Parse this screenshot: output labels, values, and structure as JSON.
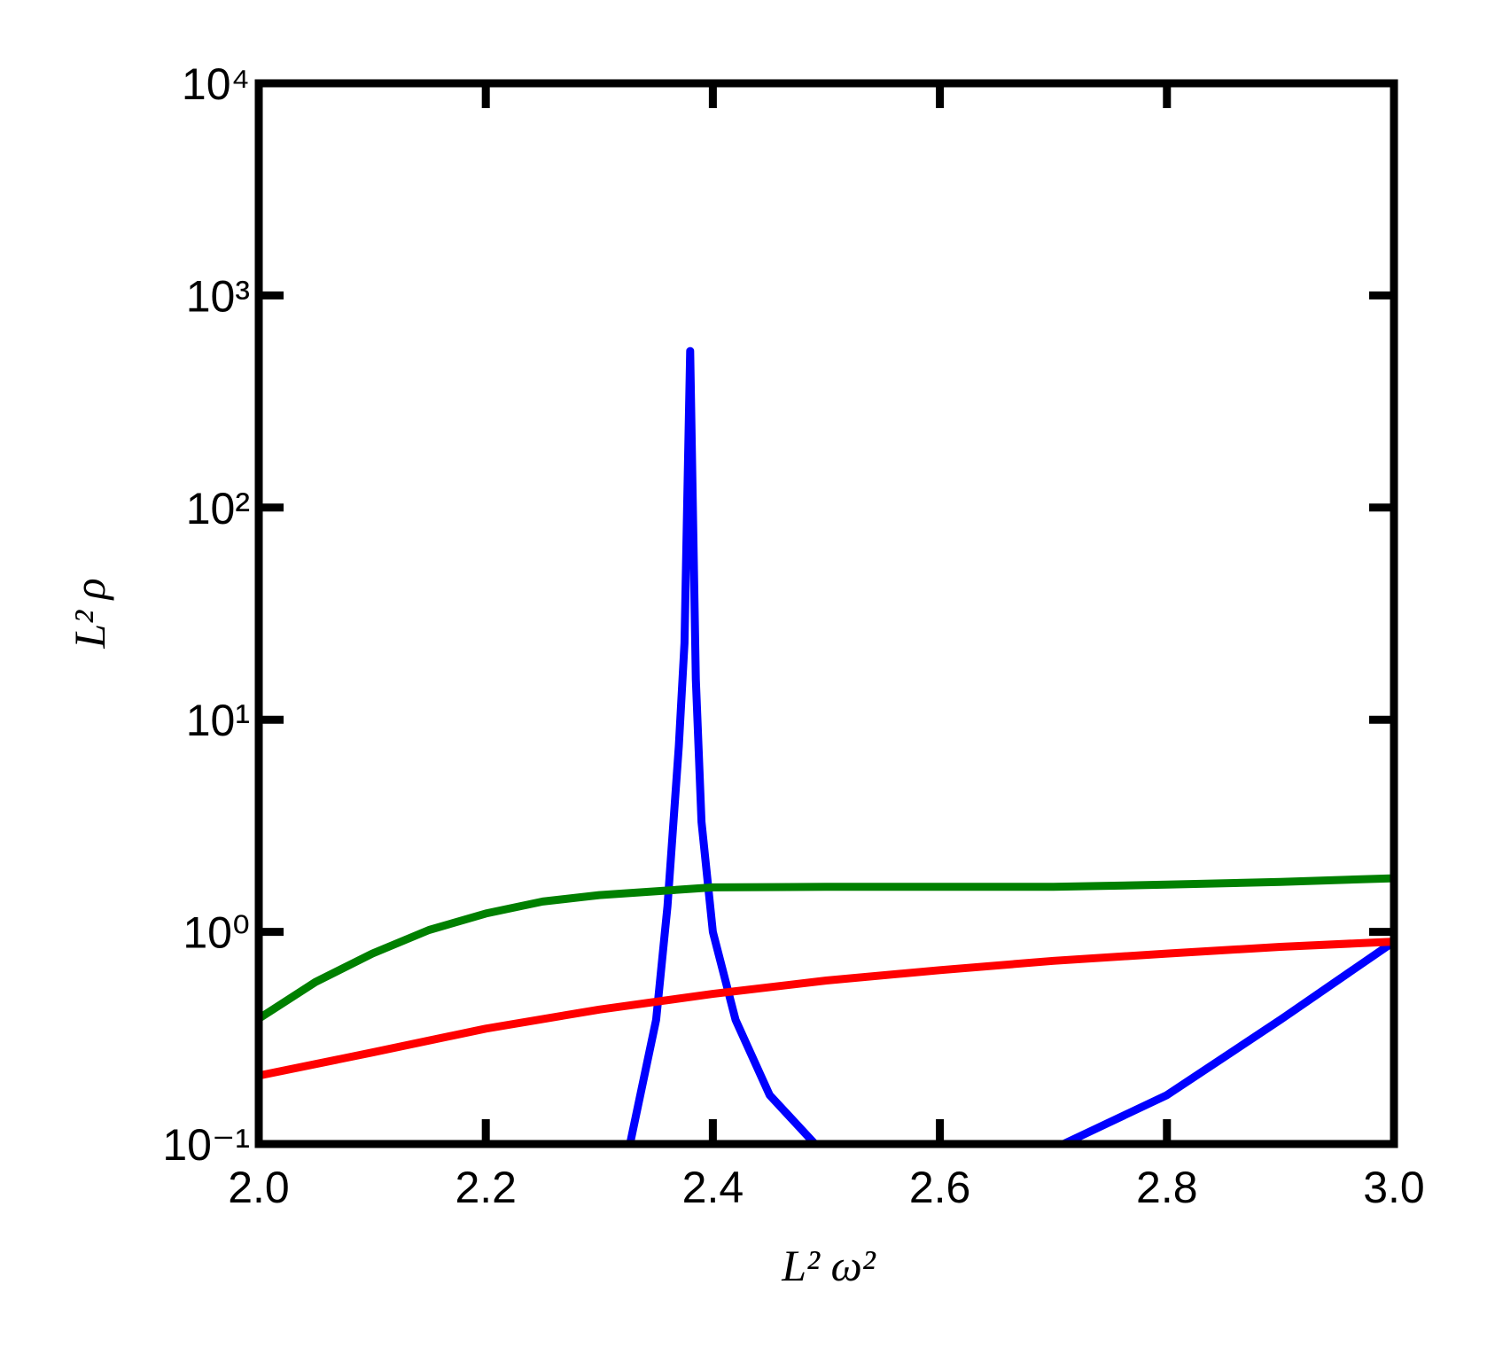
{
  "chart_data": {
    "type": "line",
    "xlabel": "L² ω²",
    "ylabel": "L² ρ",
    "xlim": [
      2.0,
      3.0
    ],
    "xticks": [
      {
        "value": 2.0,
        "label": "2.0"
      },
      2.2,
      2.4,
      2.6,
      2.8,
      {
        "value": 3.0,
        "label": "3.0"
      }
    ],
    "ylim": [
      0.1,
      10000
    ],
    "log_y": true,
    "yticks": [
      {
        "value": 0.1,
        "label": "10⁻¹"
      },
      {
        "value": 1,
        "label": "10⁰"
      },
      {
        "value": 10,
        "label": "10¹"
      },
      {
        "value": 100,
        "label": "10²"
      },
      {
        "value": 1000,
        "label": "10³"
      },
      {
        "value": 10000,
        "label": "10⁴"
      }
    ],
    "series": [
      {
        "color": "#0000ff",
        "x": [
          2.327,
          2.35,
          2.36,
          2.37,
          2.375,
          2.38,
          2.385,
          2.39,
          2.4,
          2.42,
          2.45,
          2.49,
          null,
          2.709,
          2.8,
          2.9,
          3.0
        ],
        "values": [
          0.1,
          0.385,
          1.32,
          7.5,
          23,
          547,
          15.5,
          3.3,
          1.0,
          0.385,
          0.17,
          0.1,
          null,
          0.1,
          0.17,
          0.385,
          0.9
        ]
      },
      {
        "color": "#008000",
        "x": [
          2.0,
          2.05,
          2.1,
          2.15,
          2.2,
          2.25,
          2.3,
          2.4,
          2.5,
          2.6,
          2.7,
          2.8,
          2.9,
          3.0
        ],
        "values": [
          0.39,
          0.58,
          0.79,
          1.02,
          1.22,
          1.39,
          1.49,
          1.62,
          1.63,
          1.63,
          1.63,
          1.67,
          1.72,
          1.79
        ]
      },
      {
        "color": "#ff0000",
        "x": [
          2.0,
          2.1,
          2.2,
          2.3,
          2.4,
          2.5,
          2.6,
          2.7,
          2.8,
          2.9,
          3.0
        ],
        "values": [
          0.21,
          0.27,
          0.35,
          0.43,
          0.51,
          0.59,
          0.66,
          0.73,
          0.79,
          0.85,
          0.9
        ]
      }
    ]
  }
}
